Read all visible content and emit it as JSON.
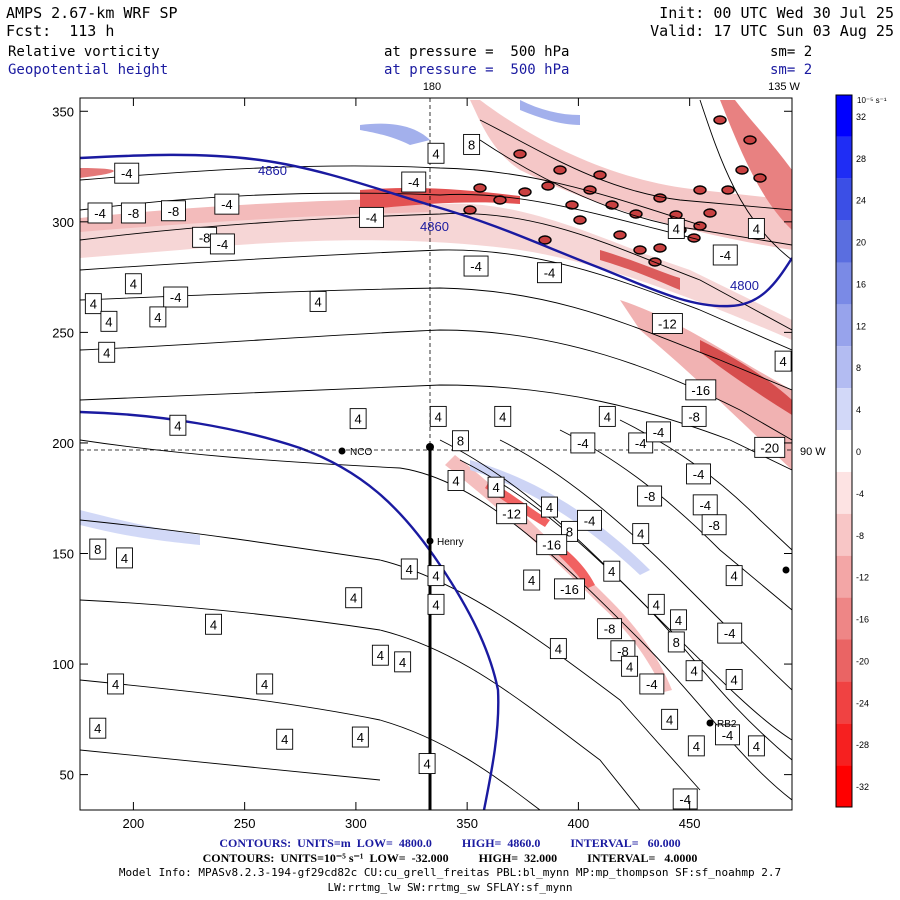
{
  "header": {
    "model": "AMPS 2.67-km WRF SP",
    "forecast": "Fcst:  113 h",
    "init": "Init: 00 UTC Wed 30 Jul 25",
    "valid": "Valid: 17 UTC Sun 03 Aug 25",
    "field1_name": "Relative vorticity",
    "field1_level": "at pressure =  500 hPa",
    "field1_sm": "sm= 2",
    "field2_name": "Geopotential height",
    "field2_level": "at pressure =  500 hPa",
    "field2_sm": "sm= 2"
  },
  "map_labels": {
    "lon_top_left": "180",
    "lon_top_right": "135 W",
    "lon_right": "90 W",
    "stations": [
      "NCO",
      "Henry",
      "RB2"
    ],
    "height_contour_labels": [
      "4860",
      "4860",
      "4800"
    ]
  },
  "colorbar": {
    "unit_label": "10⁻⁵ s⁻¹",
    "ticks": [
      "32",
      "28",
      "24",
      "20",
      "16",
      "12",
      "8",
      "4",
      "0",
      "-4",
      "-8",
      "-12",
      "-16",
      "-20",
      "-24",
      "-28",
      "-32"
    ],
    "colors": [
      "#0000ff",
      "#1f2df5",
      "#3b4fe6",
      "#5a6ee0",
      "#7a8ae6",
      "#97a3ec",
      "#b3bcf2",
      "#d2d8f8",
      "#ffffff",
      "#fde3e3",
      "#f8c6c6",
      "#f3a6a6",
      "#ee8686",
      "#ea6464",
      "#f04242",
      "#f62020",
      "#ff0000"
    ]
  },
  "footer": {
    "line1": "CONTOURS:  UNITS=m  LOW=  4800.0          HIGH=  4860.0          INTERVAL=   60.000",
    "line2": "CONTOURS:  UNITS=10⁻⁵ s⁻¹  LOW=  -32.000          HIGH=  32.000          INTERVAL=   4.0000",
    "line3": "Model Info: MPASv8.2.3-194-gf29cd82c CU:cu_grell_freitas PBL:bl_mynn MP:mp_thompson SF:sf_noahmp 2.7",
    "line4": "LW:rrtmg_lw SW:rrtmg_sw SFLAY:sf_mynn"
  },
  "chart_data": {
    "type": "contour",
    "x_ticks": [
      200,
      250,
      300,
      350,
      400,
      450
    ],
    "y_ticks": [
      50,
      100,
      150,
      200,
      250,
      300,
      350
    ],
    "xlim": [
      176,
      496
    ],
    "ylim": [
      34,
      356
    ],
    "contour_labels": [
      {
        "x": 352,
        "y": 335,
        "v": "8"
      },
      {
        "x": 336,
        "y": 331,
        "v": "4"
      },
      {
        "x": 197,
        "y": 322,
        "v": "-4"
      },
      {
        "x": 326,
        "y": 318,
        "v": "-4"
      },
      {
        "x": 185,
        "y": 304,
        "v": "-4"
      },
      {
        "x": 200,
        "y": 304,
        "v": "-8"
      },
      {
        "x": 218,
        "y": 305,
        "v": "-8"
      },
      {
        "x": 242,
        "y": 308,
        "v": "-4"
      },
      {
        "x": 307,
        "y": 302,
        "v": "-4"
      },
      {
        "x": 232,
        "y": 293,
        "v": "-8"
      },
      {
        "x": 240,
        "y": 290,
        "v": "-4"
      },
      {
        "x": 444,
        "y": 297,
        "v": "4"
      },
      {
        "x": 480,
        "y": 297,
        "v": "4"
      },
      {
        "x": 354,
        "y": 280,
        "v": "-4"
      },
      {
        "x": 387,
        "y": 277,
        "v": "-4"
      },
      {
        "x": 466,
        "y": 285,
        "v": "-4"
      },
      {
        "x": 182,
        "y": 263,
        "v": "4"
      },
      {
        "x": 200,
        "y": 272,
        "v": "4"
      },
      {
        "x": 219,
        "y": 266,
        "v": "-4"
      },
      {
        "x": 283,
        "y": 264,
        "v": "4"
      },
      {
        "x": 189,
        "y": 255,
        "v": "4"
      },
      {
        "x": 211,
        "y": 257,
        "v": "4"
      },
      {
        "x": 440,
        "y": 254,
        "v": "-12"
      },
      {
        "x": 188,
        "y": 241,
        "v": "4"
      },
      {
        "x": 455,
        "y": 224,
        "v": "-16"
      },
      {
        "x": 492,
        "y": 237,
        "v": "4"
      },
      {
        "x": 220,
        "y": 208,
        "v": "4"
      },
      {
        "x": 301,
        "y": 211,
        "v": "4"
      },
      {
        "x": 337,
        "y": 212,
        "v": "4"
      },
      {
        "x": 366,
        "y": 212,
        "v": "4"
      },
      {
        "x": 413,
        "y": 212,
        "v": "4"
      },
      {
        "x": 452,
        "y": 212,
        "v": "-8"
      },
      {
        "x": 428,
        "y": 200,
        "v": "-4"
      },
      {
        "x": 436,
        "y": 205,
        "v": "-4"
      },
      {
        "x": 402,
        "y": 200,
        "v": "-4"
      },
      {
        "x": 347,
        "y": 201,
        "v": "8"
      },
      {
        "x": 486,
        "y": 198,
        "v": "-20"
      },
      {
        "x": 454,
        "y": 186,
        "v": "-4"
      },
      {
        "x": 345,
        "y": 183,
        "v": "4"
      },
      {
        "x": 363,
        "y": 180,
        "v": "4"
      },
      {
        "x": 432,
        "y": 176,
        "v": "-8"
      },
      {
        "x": 457,
        "y": 172,
        "v": "-4"
      },
      {
        "x": 370,
        "y": 168,
        "v": "-12"
      },
      {
        "x": 387,
        "y": 171,
        "v": "4"
      },
      {
        "x": 405,
        "y": 165,
        "v": "-4"
      },
      {
        "x": 396,
        "y": 160,
        "v": "8"
      },
      {
        "x": 428,
        "y": 159,
        "v": "4"
      },
      {
        "x": 461,
        "y": 163,
        "v": "-8"
      },
      {
        "x": 388,
        "y": 154,
        "v": "-16"
      },
      {
        "x": 184,
        "y": 152,
        "v": "8"
      },
      {
        "x": 196,
        "y": 148,
        "v": "4"
      },
      {
        "x": 324,
        "y": 143,
        "v": "4"
      },
      {
        "x": 336,
        "y": 140,
        "v": "4"
      },
      {
        "x": 379,
        "y": 138,
        "v": "4"
      },
      {
        "x": 415,
        "y": 142,
        "v": "4"
      },
      {
        "x": 470,
        "y": 140,
        "v": "4"
      },
      {
        "x": 396,
        "y": 134,
        "v": "-16"
      },
      {
        "x": 299,
        "y": 130,
        "v": "4"
      },
      {
        "x": 336,
        "y": 127,
        "v": "4"
      },
      {
        "x": 435,
        "y": 127,
        "v": "4"
      },
      {
        "x": 445,
        "y": 120,
        "v": "4"
      },
      {
        "x": 236,
        "y": 118,
        "v": "4"
      },
      {
        "x": 414,
        "y": 116,
        "v": "-8"
      },
      {
        "x": 444,
        "y": 110,
        "v": "8"
      },
      {
        "x": 468,
        "y": 114,
        "v": "-4"
      },
      {
        "x": 420,
        "y": 106,
        "v": "-8"
      },
      {
        "x": 391,
        "y": 107,
        "v": "4"
      },
      {
        "x": 311,
        "y": 104,
        "v": "4"
      },
      {
        "x": 321,
        "y": 101,
        "v": "4"
      },
      {
        "x": 423,
        "y": 99,
        "v": "4"
      },
      {
        "x": 452,
        "y": 97,
        "v": "4"
      },
      {
        "x": 470,
        "y": 93,
        "v": "4"
      },
      {
        "x": 192,
        "y": 91,
        "v": "4"
      },
      {
        "x": 259,
        "y": 91,
        "v": "4"
      },
      {
        "x": 433,
        "y": 91,
        "v": "-4"
      },
      {
        "x": 441,
        "y": 75,
        "v": "4"
      },
      {
        "x": 467,
        "y": 68,
        "v": "-4"
      },
      {
        "x": 453,
        "y": 63,
        "v": "4"
      },
      {
        "x": 480,
        "y": 63,
        "v": "4"
      },
      {
        "x": 184,
        "y": 71,
        "v": "4"
      },
      {
        "x": 268,
        "y": 66,
        "v": "4"
      },
      {
        "x": 302,
        "y": 67,
        "v": "4"
      },
      {
        "x": 332,
        "y": 55,
        "v": "4"
      },
      {
        "x": 448,
        "y": 39,
        "v": "-4"
      }
    ]
  }
}
